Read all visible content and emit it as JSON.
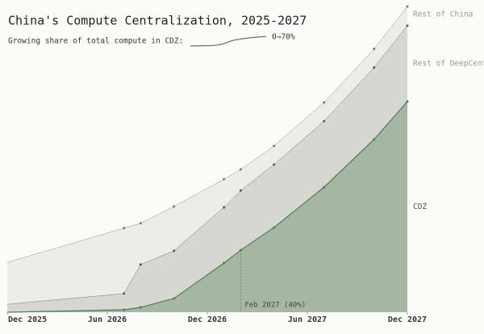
{
  "chart_data": {
    "type": "stacked_area",
    "title": "China's Compute Centralization, 2025-2027",
    "subtitle": "Growing share of total compute in CDZ:",
    "sparkline_label": "0→70%",
    "x": [
      "2025-12",
      "2026-07",
      "2026-08",
      "2026-10",
      "2027-01",
      "2027-02",
      "2027-04",
      "2027-07",
      "2027-10",
      "2027-12"
    ],
    "xlim": [
      "2025-12",
      "2027-12"
    ],
    "xticks": [
      {
        "value": "2025-12",
        "label": "Dec 2025"
      },
      {
        "value": "2026-06",
        "label": "Jun 2026"
      },
      {
        "value": "2026-12",
        "label": "Dec 2026"
      },
      {
        "value": "2027-06",
        "label": "Jun 2027"
      },
      {
        "value": "2027-12",
        "label": "Dec 2027"
      }
    ],
    "ylim": [
      0,
      100
    ],
    "series": [
      {
        "name": "CDZ",
        "color": "#a5b7a2",
        "line_color": "#4f7f55",
        "values": [
          0,
          0.8,
          1.6,
          4.5,
          16.1,
          20.3,
          27.7,
          40.9,
          56.5,
          68.9
        ]
      },
      {
        "name": "Rest of DeepCent",
        "color": "#d7d7d2",
        "line_color": "#555555",
        "values": [
          2.6,
          5.3,
          14.0,
          15.6,
          18.2,
          19.5,
          20.6,
          21.6,
          23.5,
          24.8
        ]
      },
      {
        "name": "Rest of China",
        "color": "#ececE8",
        "line_color": "#777777",
        "values": [
          13.7,
          21.4,
          13.5,
          14.5,
          9.2,
          6.9,
          6.1,
          6.1,
          6.1,
          6.3
        ]
      }
    ],
    "annotation": {
      "x": "2027-02",
      "text": "Feb 2027 (40%)"
    }
  }
}
